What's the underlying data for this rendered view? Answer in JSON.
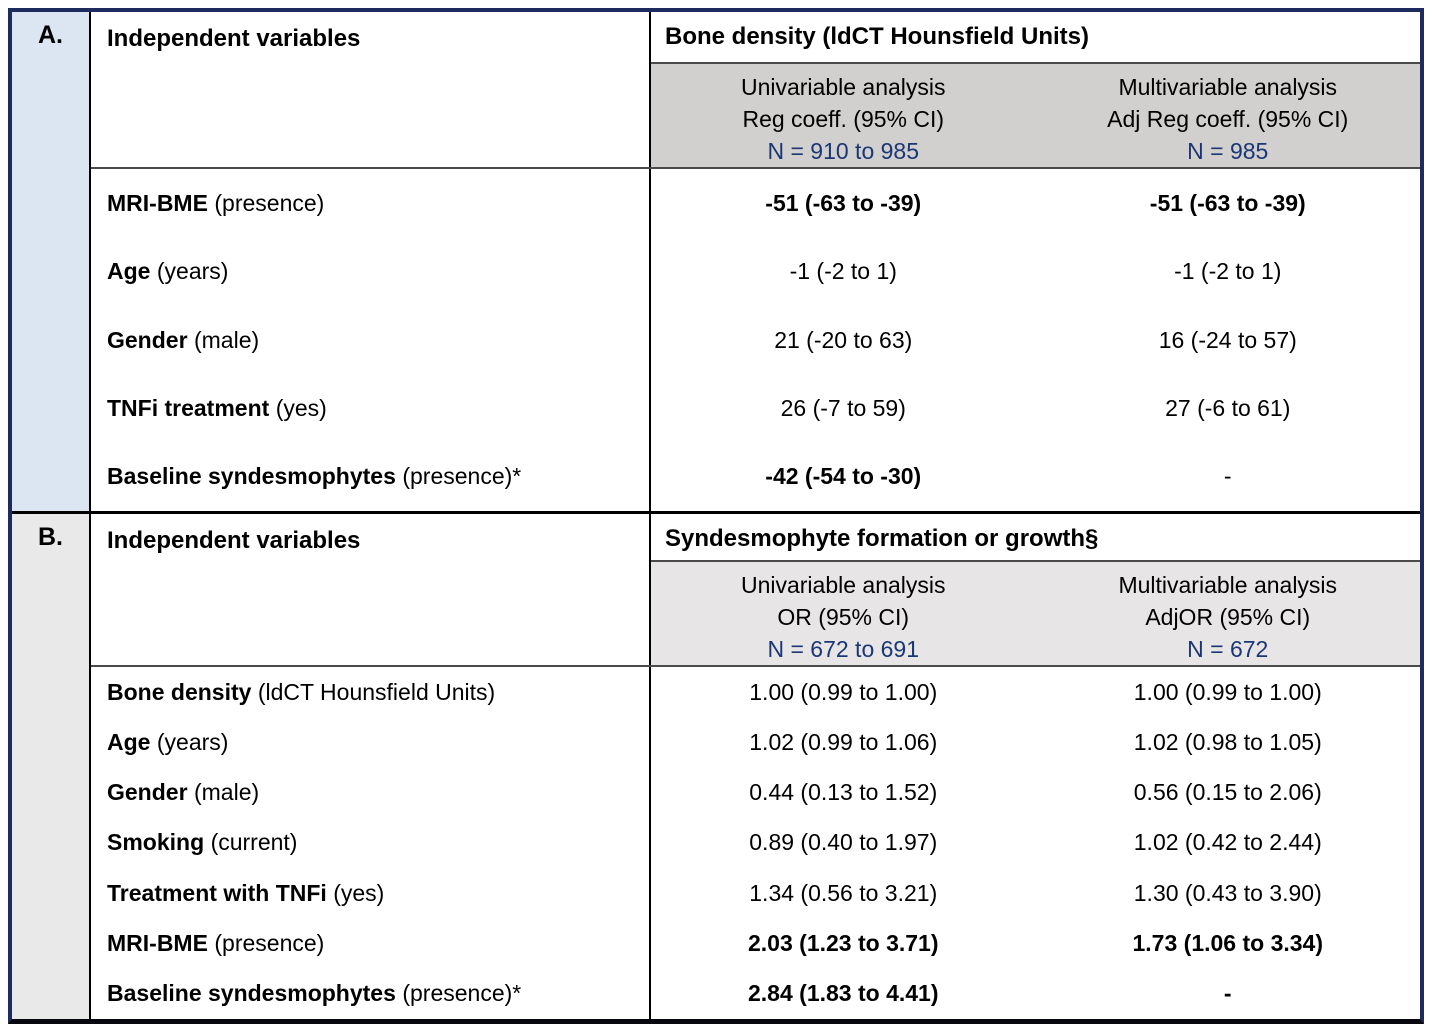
{
  "colors": {
    "outer_border_navy": "#1d2b5f",
    "bottom_border_black": "#07080f",
    "panel_a_id_bg": "#dce6f2",
    "panel_b_id_bg": "#e9e9e9",
    "panel_a_subheader_bg": "#d2cfcf",
    "panel_b_subheader_bg": "#e7e5e5",
    "n_text_blue": "#1a3775",
    "grid_line": "#000000"
  },
  "panels": [
    {
      "id": "A.",
      "independent_label": "Independent variables",
      "outcome_header": "Bone density (ldCT Hounsfield Units)",
      "columns": [
        {
          "title": "Univariable analysis",
          "measure": "Reg coeff. (95% CI)",
          "n": "N = 910 to 985"
        },
        {
          "title": "Multivariable analysis",
          "measure": "Adj Reg coeff. (95% CI)",
          "n": "N = 985"
        }
      ],
      "rows": [
        {
          "name": "MRI-BME",
          "qualifier": "(presence)",
          "univariable": "-51 (-63 to -39)",
          "multivariable": "-51 (-63 to -39)"
        },
        {
          "name": "Age",
          "qualifier": "(years)",
          "univariable": "-1 (-2 to 1)",
          "multivariable": "-1 (-2 to 1)"
        },
        {
          "name": "Gender",
          "qualifier": "(male)",
          "univariable": "21 (-20 to 63)",
          "multivariable": "16 (-24 to 57)"
        },
        {
          "name": "TNFi treatment",
          "qualifier": "(yes)",
          "univariable": "26 (-7 to 59)",
          "multivariable": "27 (-6 to 61)"
        },
        {
          "name": "Baseline syndesmophytes",
          "qualifier": "(presence)*",
          "univariable": "-42 (-54 to -30)",
          "multivariable": "-"
        }
      ]
    },
    {
      "id": "B.",
      "independent_label": "Independent variables",
      "outcome_header": "Syndesmophyte formation or growth§",
      "columns": [
        {
          "title": "Univariable analysis",
          "measure": "OR (95% CI)",
          "n": "N = 672 to 691"
        },
        {
          "title": "Multivariable analysis",
          "measure": "AdjOR (95% CI)",
          "n": "N = 672"
        }
      ],
      "rows": [
        {
          "name": "Bone density",
          "qualifier": "(ldCT Hounsfield Units)",
          "univariable": "1.00 (0.99 to 1.00)",
          "multivariable": "1.00 (0.99 to 1.00)"
        },
        {
          "name": "Age",
          "qualifier": "(years)",
          "univariable": "1.02 (0.99 to 1.06)",
          "multivariable": "1.02 (0.98 to 1.05)"
        },
        {
          "name": "Gender",
          "qualifier": "(male)",
          "univariable": "0.44 (0.13 to 1.52)",
          "multivariable": "0.56 (0.15 to 2.06)"
        },
        {
          "name": "Smoking",
          "qualifier": "(current)",
          "univariable": "0.89 (0.40 to 1.97)",
          "multivariable": "1.02 (0.42 to 2.44)"
        },
        {
          "name": "Treatment with TNFi",
          "qualifier": "(yes)",
          "univariable": "1.34 (0.56 to 3.21)",
          "multivariable": "1.30 (0.43 to 3.90)"
        },
        {
          "name": "MRI-BME",
          "qualifier": "(presence)",
          "univariable": "2.03 (1.23 to 3.71)",
          "multivariable": "1.73 (1.06 to 3.34)"
        },
        {
          "name": "Baseline syndesmophytes",
          "qualifier": "(presence)*",
          "univariable": "2.84 (1.83 to 4.41)",
          "multivariable": "-"
        }
      ]
    }
  ]
}
